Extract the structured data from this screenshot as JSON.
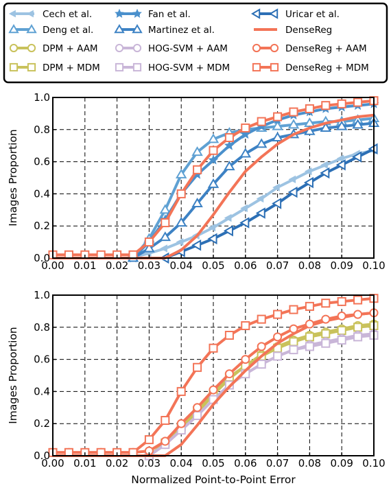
{
  "chart_data": [
    {
      "type": "line",
      "xlabel": "",
      "ylabel": "Images Proportion",
      "xlim": [
        0,
        0.1
      ],
      "ylim": [
        0,
        1
      ],
      "xticks": [
        "0.00",
        "0.01",
        "0.02",
        "0.03",
        "0.04",
        "0.05",
        "0.06",
        "0.07",
        "0.08",
        "0.09",
        "0.10"
      ],
      "yticks": [
        "0.0",
        "0.2",
        "0.4",
        "0.6",
        "0.8",
        "1.0"
      ],
      "grid": true,
      "series": [
        {
          "name": "Cech et al.",
          "color": "#9dc3e2",
          "marker": "leftarrow",
          "x": [
            0.024,
            0.03,
            0.035,
            0.04,
            0.045,
            0.05,
            0.055,
            0.06,
            0.065,
            0.07,
            0.075,
            0.08,
            0.085,
            0.09,
            0.095,
            0.1
          ],
          "y": [
            0,
            0.03,
            0.06,
            0.1,
            0.14,
            0.19,
            0.25,
            0.31,
            0.37,
            0.44,
            0.49,
            0.54,
            0.58,
            0.62,
            0.65,
            0.67
          ]
        },
        {
          "name": "Deng et al.",
          "color": "#5fa1d3",
          "marker": "uptri",
          "x": [
            0.025,
            0.03,
            0.035,
            0.04,
            0.045,
            0.05,
            0.055,
            0.06,
            0.065,
            0.07,
            0.075,
            0.08,
            0.085,
            0.09,
            0.095,
            0.1
          ],
          "y": [
            0,
            0.12,
            0.3,
            0.52,
            0.66,
            0.74,
            0.78,
            0.8,
            0.81,
            0.82,
            0.83,
            0.84,
            0.85,
            0.85,
            0.86,
            0.87
          ]
        },
        {
          "name": "Fan et al.",
          "color": "#4a90cc",
          "marker": "star",
          "x": [
            0.025,
            0.03,
            0.035,
            0.04,
            0.045,
            0.05,
            0.055,
            0.06,
            0.065,
            0.07,
            0.075,
            0.08,
            0.085,
            0.09,
            0.095,
            0.1
          ],
          "y": [
            0,
            0.1,
            0.24,
            0.4,
            0.52,
            0.61,
            0.7,
            0.77,
            0.82,
            0.86,
            0.89,
            0.91,
            0.93,
            0.94,
            0.95,
            0.96
          ]
        },
        {
          "name": "Martinez et al.",
          "color": "#3d82c4",
          "marker": "uptri",
          "x": [
            0.025,
            0.03,
            0.035,
            0.04,
            0.045,
            0.05,
            0.055,
            0.06,
            0.065,
            0.07,
            0.075,
            0.08,
            0.085,
            0.09,
            0.095,
            0.1
          ],
          "y": [
            0,
            0.06,
            0.13,
            0.22,
            0.34,
            0.46,
            0.57,
            0.65,
            0.71,
            0.75,
            0.77,
            0.79,
            0.81,
            0.82,
            0.83,
            0.84
          ]
        },
        {
          "name": "Uricar et al.",
          "color": "#2c6fb5",
          "marker": "lefttri",
          "x": [
            0.035,
            0.04,
            0.045,
            0.05,
            0.055,
            0.06,
            0.065,
            0.07,
            0.075,
            0.08,
            0.085,
            0.09,
            0.095,
            0.1
          ],
          "y": [
            0,
            0.04,
            0.08,
            0.12,
            0.17,
            0.22,
            0.28,
            0.34,
            0.41,
            0.47,
            0.53,
            0.58,
            0.63,
            0.68
          ]
        },
        {
          "name": "DenseReg",
          "color": "#f37457",
          "marker": "none",
          "x": [
            0,
            0.035,
            0.04,
            0.045,
            0.05,
            0.055,
            0.06,
            0.065,
            0.07,
            0.075,
            0.08,
            0.085,
            0.09,
            0.095,
            0.1
          ],
          "y": [
            0,
            0,
            0.05,
            0.14,
            0.27,
            0.41,
            0.54,
            0.63,
            0.71,
            0.77,
            0.81,
            0.84,
            0.86,
            0.88,
            0.89
          ]
        },
        {
          "name": "DenseReg + MDM",
          "color": "#f37457",
          "marker": "square",
          "x": [
            0,
            0.005,
            0.01,
            0.015,
            0.02,
            0.025,
            0.03,
            0.035,
            0.04,
            0.045,
            0.05,
            0.055,
            0.06,
            0.065,
            0.07,
            0.075,
            0.08,
            0.085,
            0.09,
            0.095,
            0.1
          ],
          "y": [
            0.02,
            0.02,
            0.02,
            0.02,
            0.02,
            0.02,
            0.1,
            0.22,
            0.4,
            0.55,
            0.67,
            0.75,
            0.81,
            0.85,
            0.88,
            0.91,
            0.93,
            0.95,
            0.96,
            0.97,
            0.98
          ]
        }
      ]
    },
    {
      "type": "line",
      "xlabel": "Normalized Point-to-Point Error",
      "ylabel": "Images Proportion",
      "xlim": [
        0,
        0.1
      ],
      "ylim": [
        0,
        1
      ],
      "xticks": [
        "0.00",
        "0.01",
        "0.02",
        "0.03",
        "0.04",
        "0.05",
        "0.06",
        "0.07",
        "0.08",
        "0.09",
        "0.10"
      ],
      "yticks": [
        "0.0",
        "0.2",
        "0.4",
        "0.6",
        "0.8",
        "1.0"
      ],
      "grid": true,
      "series": [
        {
          "name": "DPM + AAM",
          "color": "#c9c25c",
          "marker": "circle",
          "x": [
            0.03,
            0.035,
            0.04,
            0.045,
            0.05,
            0.055,
            0.06,
            0.065,
            0.07,
            0.075,
            0.08,
            0.085,
            0.09,
            0.095,
            0.1
          ],
          "y": [
            0,
            0.07,
            0.17,
            0.27,
            0.38,
            0.48,
            0.56,
            0.63,
            0.68,
            0.72,
            0.75,
            0.77,
            0.79,
            0.81,
            0.82
          ]
        },
        {
          "name": "DPM + MDM",
          "color": "#c9c25c",
          "marker": "square",
          "x": [
            0.03,
            0.035,
            0.04,
            0.045,
            0.05,
            0.055,
            0.06,
            0.065,
            0.07,
            0.075,
            0.08,
            0.085,
            0.09,
            0.095,
            0.1
          ],
          "y": [
            0,
            0.08,
            0.18,
            0.28,
            0.39,
            0.49,
            0.56,
            0.62,
            0.67,
            0.71,
            0.74,
            0.76,
            0.78,
            0.8,
            0.81
          ]
        },
        {
          "name": "HOG-SVM + AAM",
          "color": "#c9b6d8",
          "marker": "circle",
          "x": [
            0.03,
            0.035,
            0.04,
            0.045,
            0.05,
            0.055,
            0.06,
            0.065,
            0.07,
            0.075,
            0.08,
            0.085,
            0.09,
            0.095,
            0.1
          ],
          "y": [
            0,
            0.07,
            0.16,
            0.25,
            0.35,
            0.44,
            0.51,
            0.57,
            0.62,
            0.66,
            0.69,
            0.71,
            0.73,
            0.75,
            0.76
          ]
        },
        {
          "name": "HOG-SVM + MDM",
          "color": "#c9b6d8",
          "marker": "square",
          "x": [
            0.03,
            0.035,
            0.04,
            0.045,
            0.05,
            0.055,
            0.06,
            0.065,
            0.07,
            0.075,
            0.08,
            0.085,
            0.09,
            0.095,
            0.1
          ],
          "y": [
            0,
            0.07,
            0.16,
            0.25,
            0.35,
            0.44,
            0.51,
            0.57,
            0.62,
            0.66,
            0.68,
            0.7,
            0.72,
            0.74,
            0.75
          ]
        },
        {
          "name": "DenseReg",
          "color": "#f37457",
          "marker": "none",
          "x": [
            0,
            0.035,
            0.04,
            0.045,
            0.05,
            0.055,
            0.06,
            0.065,
            0.07,
            0.075,
            0.08,
            0.085,
            0.09,
            0.095,
            0.1
          ],
          "y": [
            0,
            0,
            0.07,
            0.19,
            0.32,
            0.43,
            0.53,
            0.62,
            0.7,
            0.76,
            0.81,
            0.84,
            0.86,
            0.88,
            0.89
          ]
        },
        {
          "name": "DenseReg + AAM",
          "color": "#f37457",
          "marker": "circle",
          "x": [
            0,
            0.005,
            0.01,
            0.015,
            0.02,
            0.025,
            0.03,
            0.035,
            0.04,
            0.045,
            0.05,
            0.055,
            0.06,
            0.065,
            0.07,
            0.075,
            0.08,
            0.085,
            0.09,
            0.095,
            0.1
          ],
          "y": [
            0.02,
            0.02,
            0.02,
            0.02,
            0.02,
            0.02,
            0.03,
            0.09,
            0.2,
            0.3,
            0.41,
            0.51,
            0.6,
            0.68,
            0.74,
            0.79,
            0.82,
            0.85,
            0.87,
            0.88,
            0.89
          ]
        },
        {
          "name": "DenseReg + MDM",
          "color": "#f37457",
          "marker": "square",
          "x": [
            0,
            0.005,
            0.01,
            0.015,
            0.02,
            0.025,
            0.03,
            0.035,
            0.04,
            0.045,
            0.05,
            0.055,
            0.06,
            0.065,
            0.07,
            0.075,
            0.08,
            0.085,
            0.09,
            0.095,
            0.1
          ],
          "y": [
            0.02,
            0.02,
            0.02,
            0.02,
            0.02,
            0.02,
            0.1,
            0.22,
            0.4,
            0.55,
            0.67,
            0.75,
            0.81,
            0.85,
            0.88,
            0.91,
            0.93,
            0.95,
            0.96,
            0.97,
            0.98
          ]
        }
      ]
    }
  ],
  "legend": {
    "placement": "top",
    "entries": [
      {
        "name": "Cech et al.",
        "color": "#9dc3e2",
        "marker": "leftarrow"
      },
      {
        "name": "Fan et al.",
        "color": "#4a90cc",
        "marker": "star"
      },
      {
        "name": "Uricar et al.",
        "color": "#2c6fb5",
        "marker": "lefttri"
      },
      {
        "name": "Deng et al.",
        "color": "#5fa1d3",
        "marker": "uptri"
      },
      {
        "name": "Martinez et al.",
        "color": "#3d82c4",
        "marker": "uptri"
      },
      {
        "name": "DenseReg",
        "color": "#f37457",
        "marker": "none"
      },
      {
        "name": "DPM + AAM",
        "color": "#c9c25c",
        "marker": "circle"
      },
      {
        "name": "HOG-SVM + AAM",
        "color": "#c9b6d8",
        "marker": "circle"
      },
      {
        "name": "DenseReg + AAM",
        "color": "#f37457",
        "marker": "circle"
      },
      {
        "name": "DPM + MDM",
        "color": "#c9c25c",
        "marker": "square"
      },
      {
        "name": "HOG-SVM + MDM",
        "color": "#c9b6d8",
        "marker": "square"
      },
      {
        "name": "DenseReg + MDM",
        "color": "#f37457",
        "marker": "square"
      }
    ]
  }
}
